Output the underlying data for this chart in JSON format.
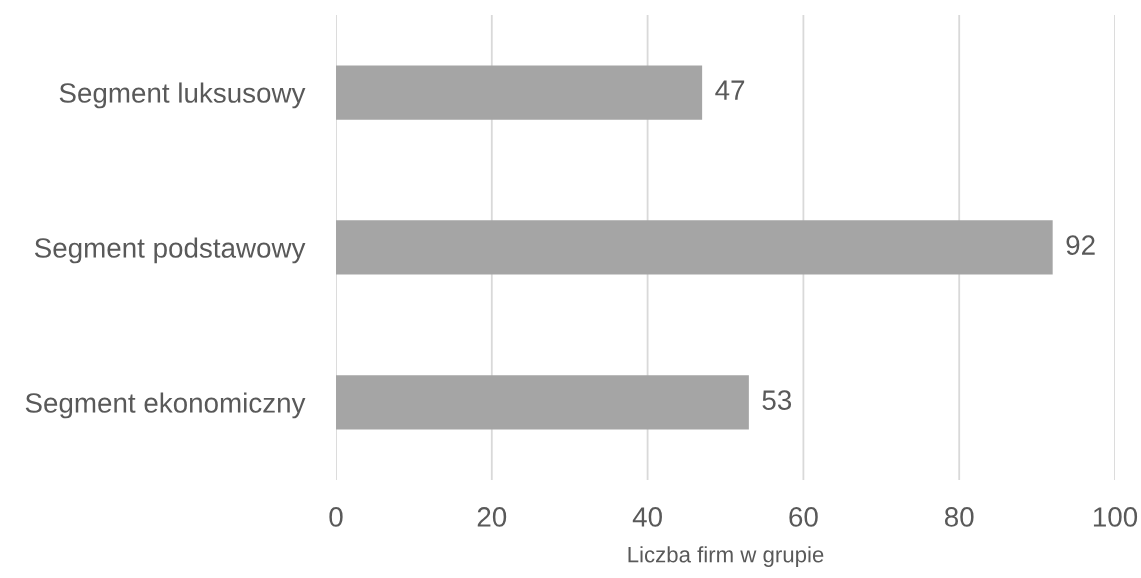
{
  "chart_data": {
    "type": "bar",
    "orientation": "horizontal",
    "categories": [
      "Segment luksusowy",
      "Segment podstawowy",
      "Segment ekonomiczny"
    ],
    "values": [
      47,
      92,
      53
    ],
    "color": "#a5a5a5",
    "xlabel": "Liczba firm w grupie",
    "xlim": [
      0,
      100
    ],
    "xticks": [
      0,
      20,
      40,
      60,
      80,
      100
    ],
    "grid": "x",
    "data_labels": true
  }
}
